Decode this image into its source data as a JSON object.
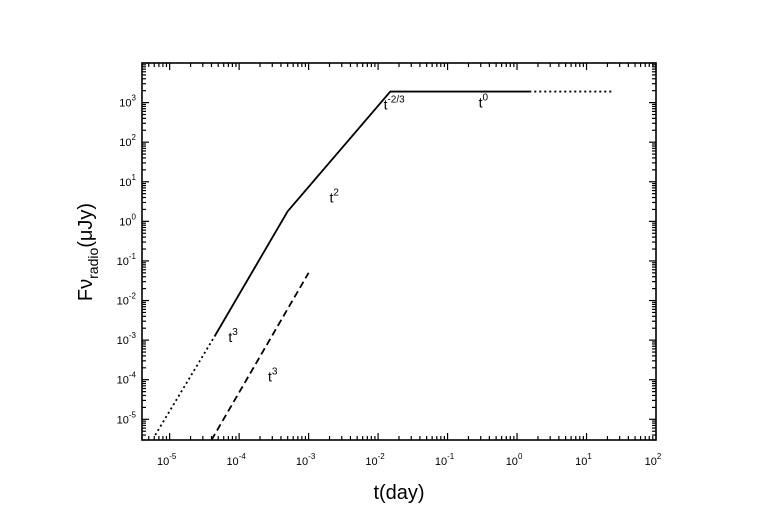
{
  "chart_data": {
    "type": "line",
    "title": "",
    "xlabel": "t(day)",
    "ylabel": {
      "base": "Fν",
      "subscript": "radio",
      "suffix": "(μJy)"
    },
    "x_scale": "log",
    "y_scale": "log",
    "xlim": [
      4e-06,
      100
    ],
    "ylim": [
      3e-06,
      10000
    ],
    "grid": false,
    "legend": "none",
    "x_ticks": [
      {
        "value": 1e-05,
        "base": "10",
        "exp": "-5"
      },
      {
        "value": 0.0001,
        "base": "10",
        "exp": "-4"
      },
      {
        "value": 0.001,
        "base": "10",
        "exp": "-3"
      },
      {
        "value": 0.01,
        "base": "10",
        "exp": "-2"
      },
      {
        "value": 0.1,
        "base": "10",
        "exp": "-1"
      },
      {
        "value": 1,
        "base": "10",
        "exp": "0"
      },
      {
        "value": 10,
        "base": "10",
        "exp": "1"
      },
      {
        "value": 100,
        "base": "10",
        "exp": "2"
      }
    ],
    "y_ticks": [
      {
        "value": 1e-05,
        "base": "10",
        "exp": "-5"
      },
      {
        "value": 0.0001,
        "base": "10",
        "exp": "-4"
      },
      {
        "value": 0.001,
        "base": "10",
        "exp": "-3"
      },
      {
        "value": 0.01,
        "base": "10",
        "exp": "-2"
      },
      {
        "value": 0.1,
        "base": "10",
        "exp": "-1"
      },
      {
        "value": 1,
        "base": "10",
        "exp": "0"
      },
      {
        "value": 10,
        "base": "10",
        "exp": "1"
      },
      {
        "value": 100,
        "base": "10",
        "exp": "2"
      },
      {
        "value": 1000,
        "base": "10",
        "exp": "3"
      }
    ],
    "series": [
      {
        "style": "dotted",
        "x": [
          6.2e-06,
          4.5e-05
        ],
        "y": [
          4e-06,
          0.0013
        ]
      },
      {
        "style": "solid",
        "x": [
          4.5e-05,
          0.0005,
          0.015,
          1.5
        ],
        "y": [
          0.0013,
          1.8,
          1900,
          1900
        ]
      },
      {
        "style": "dotted",
        "x": [
          1.5,
          25
        ],
        "y": [
          1900,
          1900
        ]
      },
      {
        "style": "dashed",
        "x": [
          4e-05,
          0.001
        ],
        "y": [
          3e-06,
          0.05
        ]
      }
    ],
    "annotations": [
      {
        "base": "t",
        "exp": "3",
        "x": 7e-05,
        "y": 0.0012
      },
      {
        "base": "t",
        "exp": "3",
        "x": 0.00026,
        "y": 0.00012
      },
      {
        "base": "t",
        "exp": "2",
        "x": 0.002,
        "y": 4
      },
      {
        "base": "t",
        "exp": "-2/3",
        "x": 0.012,
        "y": 900
      },
      {
        "base": "t",
        "exp": "0",
        "x": 0.28,
        "y": 1000
      }
    ],
    "colors": {
      "line": "#000000",
      "background": "#ffffff"
    }
  }
}
